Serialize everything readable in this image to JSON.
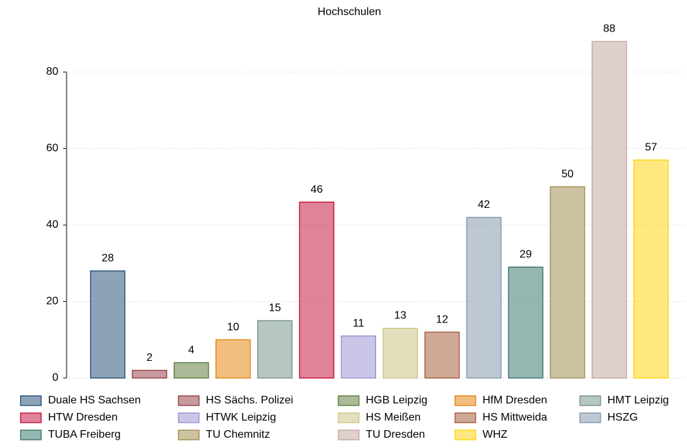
{
  "chart_data": {
    "type": "bar",
    "title": "Hochschulen",
    "categories": [
      "Duale HS Sachsen",
      "HS Sächs. Polizei",
      "HGB Leipzig",
      "HfM Dresden",
      "HMT Leipzig",
      "HTW Dresden",
      "HTWK Leipzig",
      "HS Meißen",
      "HS Mittweida",
      "HSZG",
      "TUBA Freiberg",
      "TU Chemnitz",
      "TU Dresden",
      "WHZ"
    ],
    "values": [
      28,
      2,
      4,
      10,
      15,
      46,
      11,
      13,
      12,
      42,
      29,
      50,
      88,
      57
    ],
    "colors": [
      "#1a476f",
      "#90353b",
      "#55752f",
      "#e37e00",
      "#6e8e84",
      "#c10534",
      "#938dd2",
      "#cac27e",
      "#a0522d",
      "#7b92a8",
      "#2d6d66",
      "#9c8847",
      "#bfa19c",
      "#ffd200"
    ],
    "ylim": [
      0,
      80
    ],
    "yticks": [
      0,
      20,
      40,
      60,
      80
    ],
    "grid": true,
    "legend": "bottom"
  }
}
